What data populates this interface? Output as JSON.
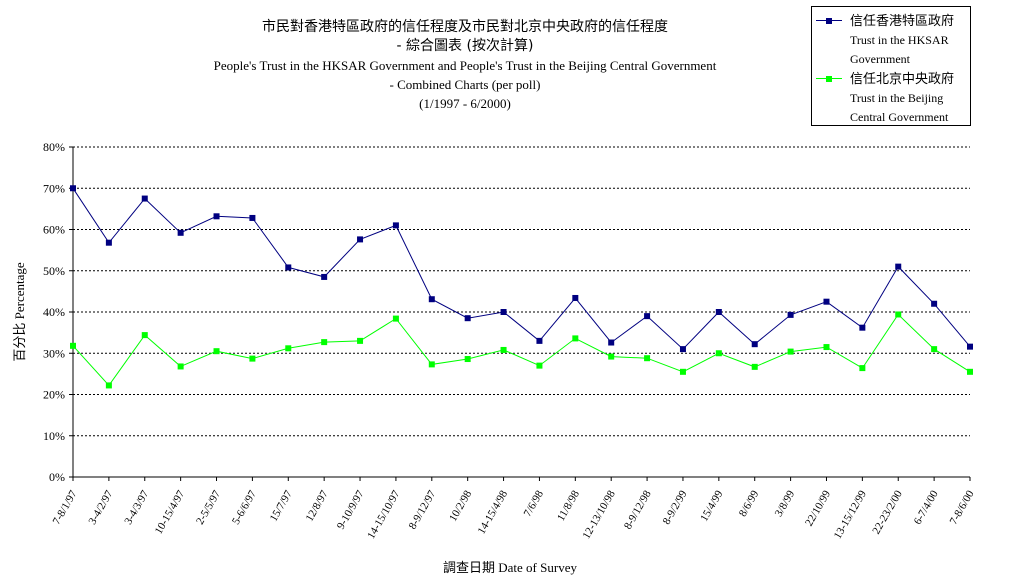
{
  "chart_data": {
    "type": "line",
    "title_zh": "市民對香港特區政府的信任程度及市民對北京中央政府的信任程度",
    "subtitle_zh": "- 綜合圖表 (按次計算)",
    "title_en": "People's Trust in the HKSAR Government and People's Trust in the Beijing Central Government",
    "subtitle_en": "- Combined Charts (per poll)",
    "period": "(1/1997 - 6/2000)",
    "xlabel": "調查日期 Date of Survey",
    "ylabel": "百分比 Percentage",
    "ylim": [
      0,
      80
    ],
    "yticks": [
      "0%",
      "10%",
      "20%",
      "30%",
      "40%",
      "50%",
      "60%",
      "70%",
      "80%"
    ],
    "grid": "horizontal dashed",
    "legend_position": "top-right",
    "categories": [
      "7-8/1/97",
      "3-4/2/97",
      "3-4/3/97",
      "10-15/4/97",
      "2-5/5/97",
      "5-6/6/97",
      "15/7/97",
      "12/8/97",
      "9-10/9/97",
      "14-15/10/97",
      "8-9/12/97",
      "10/2/98",
      "14-15/4/98",
      "7/6/98",
      "11/8/98",
      "12-13/10/98",
      "8-9/12/98",
      "8-9/2/99",
      "15/4/99",
      "8/6/99",
      "3/8/99",
      "22/10/99",
      "13-15/12/99",
      "22-23/2/00",
      "6-7/4/00",
      "7-8/6/00"
    ],
    "series": [
      {
        "name_zh": "信任香港特區政府",
        "name_en": "Trust in the HKSAR Government",
        "color": "#000080",
        "values": [
          70,
          56.8,
          67.5,
          59.2,
          63.2,
          62.8,
          50.8,
          48.5,
          57.6,
          61,
          43.1,
          38.5,
          40,
          33,
          43.4,
          32.6,
          39,
          31,
          40,
          32.2,
          39.3,
          42.5,
          36.2,
          51,
          42,
          31.6
        ]
      },
      {
        "name_zh": "信任北京中央政府",
        "name_en": "Trust in the Beijing Central Government",
        "color": "#00ff00",
        "values": [
          31.8,
          22.2,
          34.4,
          26.8,
          30.5,
          28.7,
          31.2,
          32.7,
          33,
          38.4,
          27.3,
          28.6,
          30.8,
          27,
          33.6,
          29.2,
          28.8,
          25.5,
          30,
          26.7,
          30.4,
          31.5,
          26.4,
          39.4,
          31,
          25.5
        ]
      }
    ]
  }
}
